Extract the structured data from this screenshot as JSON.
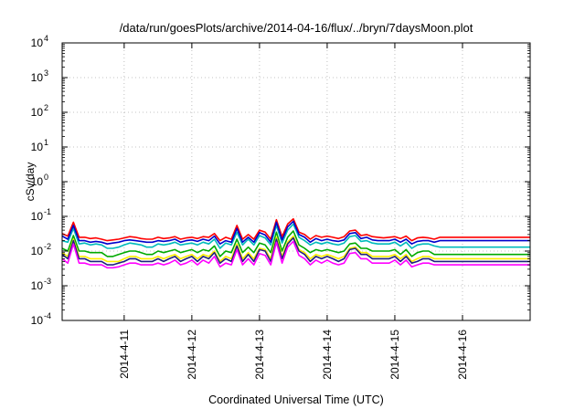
{
  "chart_data": {
    "type": "line",
    "title": "/data/run/goesPlots/archive/2014-04-16/flux/../bryn/7daysMoon.plot",
    "xlabel": "Coordinated Universal Time (UTC)",
    "ylabel": "cSv/day",
    "yscale": "log",
    "ylim": [
      0.0001,
      10000
    ],
    "xlim": [
      "2014-04-10 02:00",
      "2014-04-17 00:00"
    ],
    "grid": true,
    "y_ticks": [
      {
        "base": "10",
        "exp": "-4"
      },
      {
        "base": "10",
        "exp": "-3"
      },
      {
        "base": "10",
        "exp": "-2"
      },
      {
        "base": "10",
        "exp": "-1"
      },
      {
        "base": "10",
        "exp": "0"
      },
      {
        "base": "10",
        "exp": "1"
      },
      {
        "base": "10",
        "exp": "2"
      },
      {
        "base": "10",
        "exp": "3"
      },
      {
        "base": "10",
        "exp": "4"
      }
    ],
    "x_ticks": [
      "2014-4-11",
      "2014-4-12",
      "2014-4-13",
      "2014-4-14",
      "2014-4-15",
      "2014-4-16"
    ],
    "x_tick_values": [
      "2014-04-11 00:00",
      "2014-04-12 00:00",
      "2014-04-13 00:00",
      "2014-04-14 00:00",
      "2014-04-15 00:00",
      "2014-04-16 00:00"
    ],
    "x": [
      "2014-04-10 02:00",
      "2014-04-10 04:00",
      "2014-04-10 06:00",
      "2014-04-10 08:00",
      "2014-04-10 10:00",
      "2014-04-10 12:00",
      "2014-04-10 14:00",
      "2014-04-10 16:00",
      "2014-04-10 18:00",
      "2014-04-10 20:00",
      "2014-04-10 22:00",
      "2014-04-11 00:00",
      "2014-04-11 02:00",
      "2014-04-11 04:00",
      "2014-04-11 06:00",
      "2014-04-11 08:00",
      "2014-04-11 10:00",
      "2014-04-11 12:00",
      "2014-04-11 14:00",
      "2014-04-11 16:00",
      "2014-04-11 18:00",
      "2014-04-11 20:00",
      "2014-04-11 22:00",
      "2014-04-12 00:00",
      "2014-04-12 02:00",
      "2014-04-12 04:00",
      "2014-04-12 06:00",
      "2014-04-12 08:00",
      "2014-04-12 10:00",
      "2014-04-12 12:00",
      "2014-04-12 14:00",
      "2014-04-12 16:00",
      "2014-04-12 18:00",
      "2014-04-12 20:00",
      "2014-04-12 22:00",
      "2014-04-13 00:00",
      "2014-04-13 02:00",
      "2014-04-13 04:00",
      "2014-04-13 06:00",
      "2014-04-13 08:00",
      "2014-04-13 10:00",
      "2014-04-13 12:00",
      "2014-04-13 14:00",
      "2014-04-13 16:00",
      "2014-04-13 18:00",
      "2014-04-13 20:00",
      "2014-04-13 22:00",
      "2014-04-14 00:00",
      "2014-04-14 02:00",
      "2014-04-14 04:00",
      "2014-04-14 06:00",
      "2014-04-14 08:00",
      "2014-04-14 10:00",
      "2014-04-14 12:00",
      "2014-04-14 14:00",
      "2014-04-14 16:00",
      "2014-04-14 18:00",
      "2014-04-14 20:00",
      "2014-04-14 22:00",
      "2014-04-15 00:00",
      "2014-04-15 02:00",
      "2014-04-15 04:00",
      "2014-04-15 06:00",
      "2014-04-15 08:00",
      "2014-04-15 10:00",
      "2014-04-15 12:00",
      "2014-04-15 14:00",
      "2014-04-15 16:00",
      "2014-04-15 18:00",
      "2014-04-15 20:00",
      "2014-04-15 22:00",
      "2014-04-16 00:00",
      "2014-04-16 02:00",
      "2014-04-16 04:00",
      "2014-04-16 06:00",
      "2014-04-16 08:00",
      "2014-04-16 10:00",
      "2014-04-16 12:00",
      "2014-04-16 14:00",
      "2014-04-16 16:00",
      "2014-04-16 18:00",
      "2014-04-16 20:00",
      "2014-04-16 22:00",
      "2014-04-17 00:00"
    ],
    "series": [
      {
        "color": "#ff0000",
        "values": [
          0.032,
          0.027,
          0.068,
          0.025,
          0.025,
          0.023,
          0.024,
          0.022,
          0.02,
          0.021,
          0.022,
          0.024,
          0.026,
          0.025,
          0.023,
          0.022,
          0.022,
          0.025,
          0.023,
          0.024,
          0.026,
          0.022,
          0.024,
          0.025,
          0.023,
          0.026,
          0.025,
          0.032,
          0.02,
          0.025,
          0.022,
          0.055,
          0.022,
          0.03,
          0.022,
          0.04,
          0.035,
          0.022,
          0.08,
          0.026,
          0.06,
          0.085,
          0.035,
          0.03,
          0.022,
          0.028,
          0.025,
          0.027,
          0.025,
          0.023,
          0.026,
          0.038,
          0.04,
          0.028,
          0.03,
          0.026,
          0.025,
          0.024,
          0.025,
          0.026,
          0.023,
          0.027,
          0.02,
          0.024,
          0.025,
          0.024,
          0.022,
          0.025,
          0.025,
          0.025,
          0.025,
          0.025,
          0.025,
          0.025,
          0.025,
          0.025,
          0.025,
          0.025,
          0.025,
          0.025,
          0.025,
          0.025,
          0.025,
          0.025
        ]
      },
      {
        "color": "#00bbbb",
        "values": [
          0.02,
          0.018,
          0.045,
          0.016,
          0.017,
          0.015,
          0.016,
          0.015,
          0.012,
          0.012,
          0.013,
          0.015,
          0.017,
          0.016,
          0.015,
          0.013,
          0.013,
          0.016,
          0.015,
          0.016,
          0.018,
          0.015,
          0.016,
          0.017,
          0.015,
          0.018,
          0.016,
          0.022,
          0.012,
          0.017,
          0.015,
          0.035,
          0.015,
          0.022,
          0.015,
          0.028,
          0.024,
          0.015,
          0.055,
          0.017,
          0.04,
          0.06,
          0.025,
          0.02,
          0.015,
          0.018,
          0.016,
          0.018,
          0.016,
          0.015,
          0.017,
          0.026,
          0.028,
          0.019,
          0.02,
          0.017,
          0.016,
          0.016,
          0.016,
          0.018,
          0.014,
          0.018,
          0.012,
          0.015,
          0.016,
          0.016,
          0.014,
          0.013,
          0.013,
          0.013,
          0.013,
          0.013,
          0.013,
          0.013,
          0.013,
          0.013,
          0.013,
          0.013,
          0.013,
          0.013,
          0.013,
          0.013,
          0.013,
          0.013
        ]
      },
      {
        "color": "#0000cc",
        "values": [
          0.027,
          0.022,
          0.055,
          0.02,
          0.02,
          0.018,
          0.019,
          0.018,
          0.016,
          0.017,
          0.018,
          0.02,
          0.021,
          0.02,
          0.019,
          0.018,
          0.018,
          0.02,
          0.019,
          0.02,
          0.022,
          0.018,
          0.02,
          0.021,
          0.019,
          0.022,
          0.02,
          0.027,
          0.016,
          0.02,
          0.018,
          0.045,
          0.018,
          0.025,
          0.018,
          0.034,
          0.029,
          0.018,
          0.068,
          0.021,
          0.05,
          0.072,
          0.03,
          0.025,
          0.018,
          0.023,
          0.02,
          0.022,
          0.02,
          0.019,
          0.021,
          0.032,
          0.034,
          0.023,
          0.025,
          0.021,
          0.02,
          0.02,
          0.02,
          0.022,
          0.018,
          0.022,
          0.016,
          0.019,
          0.02,
          0.02,
          0.018,
          0.02,
          0.02,
          0.02,
          0.02,
          0.02,
          0.02,
          0.02,
          0.02,
          0.02,
          0.02,
          0.02,
          0.02,
          0.02,
          0.02,
          0.02,
          0.02,
          0.02
        ]
      },
      {
        "color": "#00aa00",
        "values": [
          0.012,
          0.01,
          0.028,
          0.01,
          0.01,
          0.009,
          0.009,
          0.009,
          0.007,
          0.007,
          0.008,
          0.009,
          0.01,
          0.01,
          0.009,
          0.008,
          0.008,
          0.01,
          0.009,
          0.01,
          0.011,
          0.009,
          0.01,
          0.011,
          0.009,
          0.011,
          0.01,
          0.014,
          0.007,
          0.01,
          0.009,
          0.022,
          0.009,
          0.013,
          0.009,
          0.017,
          0.015,
          0.009,
          0.035,
          0.01,
          0.025,
          0.038,
          0.015,
          0.012,
          0.009,
          0.011,
          0.01,
          0.011,
          0.01,
          0.009,
          0.01,
          0.016,
          0.017,
          0.012,
          0.012,
          0.01,
          0.01,
          0.01,
          0.01,
          0.011,
          0.008,
          0.011,
          0.007,
          0.009,
          0.01,
          0.01,
          0.008,
          0.008,
          0.008,
          0.008,
          0.008,
          0.008,
          0.008,
          0.008,
          0.008,
          0.008,
          0.008,
          0.008,
          0.008,
          0.008,
          0.008,
          0.008,
          0.008,
          0.008
        ]
      },
      {
        "color": "#ffee00",
        "values": [
          0.009,
          0.007,
          0.022,
          0.007,
          0.007,
          0.006,
          0.006,
          0.006,
          0.005,
          0.005,
          0.005,
          0.006,
          0.007,
          0.007,
          0.006,
          0.006,
          0.006,
          0.007,
          0.006,
          0.007,
          0.008,
          0.006,
          0.007,
          0.008,
          0.006,
          0.008,
          0.007,
          0.01,
          0.005,
          0.007,
          0.006,
          0.016,
          0.006,
          0.009,
          0.006,
          0.012,
          0.011,
          0.006,
          0.025,
          0.007,
          0.018,
          0.027,
          0.011,
          0.009,
          0.006,
          0.008,
          0.007,
          0.008,
          0.007,
          0.006,
          0.007,
          0.012,
          0.013,
          0.009,
          0.009,
          0.007,
          0.007,
          0.007,
          0.007,
          0.008,
          0.006,
          0.008,
          0.005,
          0.006,
          0.007,
          0.007,
          0.006,
          0.006,
          0.006,
          0.006,
          0.006,
          0.006,
          0.006,
          0.006,
          0.006,
          0.006,
          0.006,
          0.006,
          0.006,
          0.006,
          0.006,
          0.006,
          0.006,
          0.006
        ]
      },
      {
        "color": "#202080",
        "values": [
          0.008,
          0.006,
          0.02,
          0.006,
          0.006,
          0.005,
          0.005,
          0.005,
          0.004,
          0.004,
          0.0045,
          0.005,
          0.006,
          0.006,
          0.005,
          0.005,
          0.005,
          0.006,
          0.005,
          0.006,
          0.007,
          0.005,
          0.006,
          0.007,
          0.005,
          0.007,
          0.006,
          0.009,
          0.0045,
          0.006,
          0.005,
          0.014,
          0.005,
          0.008,
          0.005,
          0.011,
          0.01,
          0.005,
          0.022,
          0.006,
          0.016,
          0.024,
          0.01,
          0.008,
          0.005,
          0.007,
          0.006,
          0.007,
          0.006,
          0.005,
          0.006,
          0.011,
          0.012,
          0.008,
          0.008,
          0.006,
          0.006,
          0.006,
          0.006,
          0.007,
          0.005,
          0.007,
          0.0045,
          0.005,
          0.006,
          0.006,
          0.005,
          0.005,
          0.005,
          0.005,
          0.005,
          0.005,
          0.005,
          0.005,
          0.005,
          0.005,
          0.005,
          0.005,
          0.005,
          0.005,
          0.005,
          0.005,
          0.005,
          0.005
        ]
      },
      {
        "color": "#ff00ff",
        "values": [
          0.006,
          0.0045,
          0.016,
          0.0045,
          0.0045,
          0.004,
          0.004,
          0.004,
          0.0033,
          0.0033,
          0.0035,
          0.004,
          0.0045,
          0.0045,
          0.004,
          0.004,
          0.004,
          0.0045,
          0.004,
          0.0045,
          0.0055,
          0.004,
          0.0045,
          0.0055,
          0.004,
          0.0055,
          0.0045,
          0.007,
          0.0035,
          0.0045,
          0.004,
          0.011,
          0.004,
          0.006,
          0.004,
          0.0085,
          0.0075,
          0.004,
          0.018,
          0.0045,
          0.013,
          0.019,
          0.0075,
          0.006,
          0.004,
          0.0055,
          0.0045,
          0.0055,
          0.0045,
          0.004,
          0.0045,
          0.0085,
          0.009,
          0.006,
          0.006,
          0.0045,
          0.0045,
          0.0045,
          0.0045,
          0.0055,
          0.004,
          0.0055,
          0.0035,
          0.004,
          0.0045,
          0.0045,
          0.004,
          0.004,
          0.004,
          0.004,
          0.004,
          0.004,
          0.004,
          0.004,
          0.004,
          0.004,
          0.004,
          0.004,
          0.004,
          0.004,
          0.004,
          0.004,
          0.004,
          0.004
        ]
      }
    ]
  }
}
